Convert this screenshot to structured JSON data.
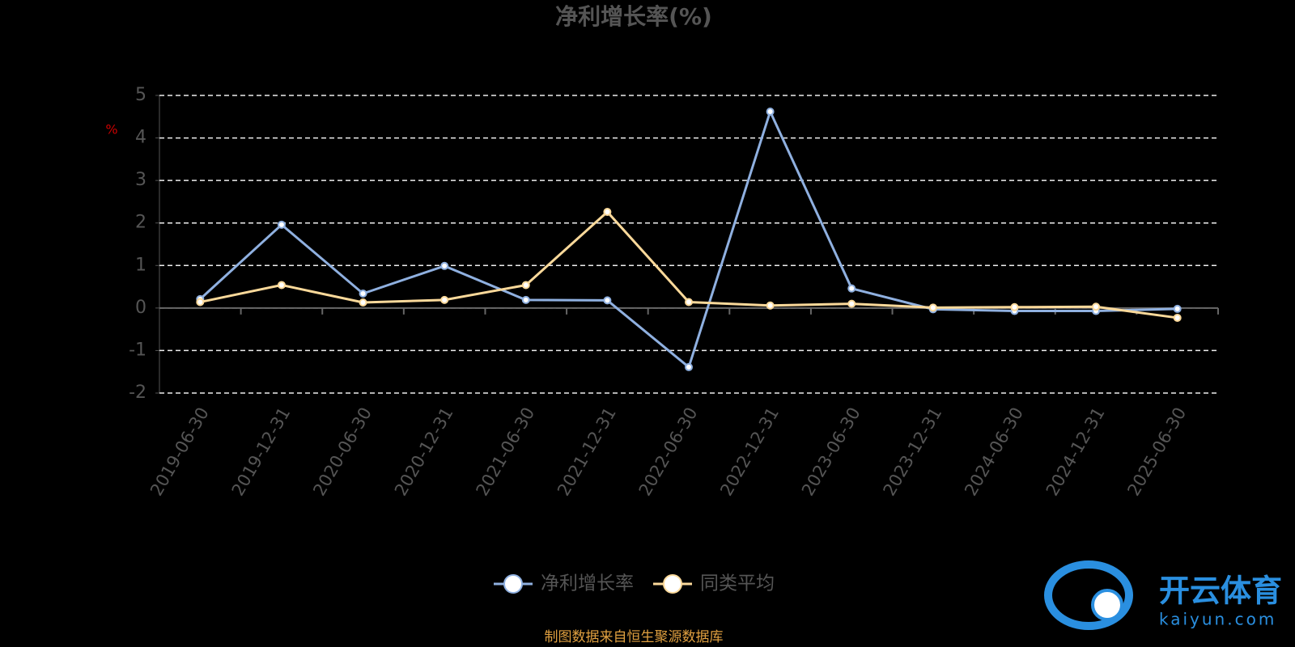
{
  "chart_data": {
    "type": "line",
    "title": "净利增长率(%)",
    "y_label": "%",
    "categories": [
      "2019-06-30",
      "2019-12-31",
      "2020-06-30",
      "2020-12-31",
      "2021-06-30",
      "2021-12-31",
      "2022-06-30",
      "2022-12-31",
      "2023-06-30",
      "2023-12-31",
      "2024-06-30",
      "2024-12-31",
      "2025-06-30"
    ],
    "series": [
      {
        "name": "净利增长率",
        "color": "#8fb0e0",
        "values": [
          0.21,
          1.96,
          0.34,
          0.99,
          0.19,
          0.18,
          -1.39,
          4.62,
          0.46,
          -0.03,
          -0.07,
          -0.07,
          -0.02
        ]
      },
      {
        "name": "同类平均",
        "color": "#fbd99a",
        "values": [
          0.14,
          0.54,
          0.13,
          0.19,
          0.54,
          2.26,
          0.14,
          0.06,
          0.1,
          0.01,
          0.02,
          0.03,
          -0.23
        ]
      }
    ],
    "ylim": [
      -2,
      5
    ],
    "yticks": [
      -2,
      -1,
      0,
      1,
      2,
      3,
      4,
      5
    ],
    "grid": true,
    "legend": "bottom",
    "source": "制图数据来自恒生聚源数据库"
  },
  "watermark": {
    "name": "开云体育",
    "site": "kaiyun.com"
  }
}
